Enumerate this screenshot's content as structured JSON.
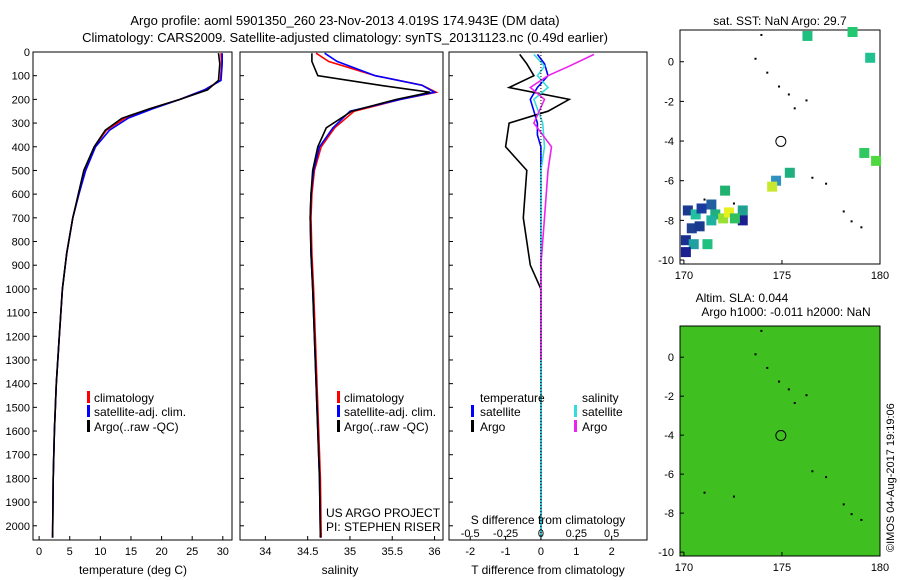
{
  "header": {
    "line1": "Argo profile: aoml 5901350_260 23-Nov-2013 4.019S 174.943E (DM data)",
    "line2": "Climatology: CARS2009. Satellite-adjusted climatology: synTS_20131123.nc (0.49d earlier)"
  },
  "colors": {
    "climatology": "#ff0000",
    "satellite": "#0000ff",
    "argo": "#000000",
    "salinity_satellite": "#33dddd",
    "salinity_argo": "#ee22ee"
  },
  "depth_ticks": [
    0,
    100,
    200,
    300,
    400,
    500,
    600,
    700,
    800,
    900,
    1000,
    1100,
    1200,
    1300,
    1400,
    1500,
    1600,
    1700,
    1800,
    1900,
    2000
  ],
  "chart_data": [
    {
      "type": "line",
      "xlabel": "temperature (deg C)",
      "ylabel": "",
      "xlim": [
        -1,
        31.5
      ],
      "ylim": [
        2060,
        0
      ],
      "x_ticks": [
        0,
        5,
        10,
        15,
        20,
        25,
        30
      ],
      "legend": [
        "climatology",
        "satellite-adj. clim.",
        "Argo(..raw -QC)"
      ],
      "series": [
        {
          "name": "climatology",
          "x": [
            29.7,
            29.8,
            29.6,
            27,
            23,
            18,
            14,
            11,
            9,
            7.5,
            6.5,
            5.5,
            4.5,
            3.8,
            3.3,
            2.8,
            2.5,
            2.3,
            2.2
          ],
          "y": [
            5,
            50,
            120,
            160,
            200,
            240,
            280,
            330,
            400,
            500,
            600,
            700,
            850,
            1000,
            1200,
            1400,
            1600,
            1800,
            2050
          ]
        },
        {
          "name": "satellite-adj. clim.",
          "x": [
            29.9,
            29.9,
            29.7,
            27,
            23,
            18.5,
            14.5,
            11.5,
            9.2,
            7.6,
            6.5,
            5.5,
            4.5,
            3.8,
            3.3,
            2.8,
            2.5,
            2.3,
            2.2
          ],
          "y": [
            5,
            50,
            120,
            160,
            200,
            240,
            280,
            330,
            400,
            500,
            600,
            700,
            850,
            1000,
            1200,
            1400,
            1600,
            1800,
            2050
          ]
        },
        {
          "name": "Argo(..raw -QC)",
          "x": [
            29.3,
            29.5,
            29.3,
            27.5,
            23,
            18,
            13.5,
            10.8,
            9,
            7.3,
            6.4,
            5.5,
            4.5,
            3.8,
            3.3,
            2.8,
            2.5,
            2.3,
            2.2
          ],
          "y": [
            5,
            50,
            120,
            160,
            200,
            240,
            280,
            330,
            400,
            500,
            600,
            700,
            850,
            1000,
            1200,
            1400,
            1600,
            1800,
            2050
          ]
        }
      ]
    },
    {
      "type": "line",
      "xlabel": "salinity",
      "ylabel": "",
      "xlim": [
        33.7,
        36.1
      ],
      "ylim": [
        2060,
        0
      ],
      "x_ticks": [
        34,
        34.5,
        35,
        35.5,
        36
      ],
      "legend": [
        "climatology",
        "satellite-adj. clim.",
        "Argo(..raw -QC)"
      ],
      "annotation": [
        "US ARGO PROJECT",
        "PI: STEPHEN RISER"
      ],
      "series": [
        {
          "name": "climatology",
          "x": [
            34.6,
            34.75,
            35.3,
            35.85,
            36.02,
            35.6,
            35.05,
            34.82,
            34.66,
            34.58,
            34.55,
            34.54,
            34.55,
            34.57,
            34.59,
            34.61,
            34.63,
            34.65,
            34.66
          ],
          "y": [
            5,
            40,
            100,
            140,
            170,
            200,
            250,
            320,
            400,
            500,
            600,
            700,
            850,
            1000,
            1200,
            1400,
            1600,
            1800,
            2050
          ]
        },
        {
          "name": "satellite-adj. clim.",
          "x": [
            34.7,
            34.85,
            35.3,
            35.85,
            36.0,
            35.6,
            35.0,
            34.8,
            34.64,
            34.57,
            34.54,
            34.53,
            34.54,
            34.56,
            34.58,
            34.6,
            34.62,
            34.64,
            34.65
          ],
          "y": [
            5,
            40,
            100,
            140,
            170,
            200,
            250,
            320,
            400,
            500,
            600,
            700,
            850,
            1000,
            1200,
            1400,
            1600,
            1800,
            2050
          ]
        },
        {
          "name": "Argo(..raw -QC)",
          "x": [
            34.55,
            34.55,
            34.62,
            35.35,
            35.95,
            35.55,
            35.02,
            34.72,
            34.62,
            34.56,
            34.54,
            34.53,
            34.54,
            34.56,
            34.58,
            34.6,
            34.62,
            34.64,
            34.65
          ],
          "y": [
            5,
            40,
            100,
            140,
            170,
            200,
            250,
            320,
            400,
            500,
            600,
            700,
            850,
            1000,
            1200,
            1400,
            1600,
            1800,
            2050
          ]
        }
      ]
    },
    {
      "type": "line",
      "xlabel": "T difference from climatology",
      "xlabel_top": "S difference from climatology",
      "xlim": [
        -2.6,
        3
      ],
      "ylim": [
        2060,
        0
      ],
      "x_ticks": [
        -2,
        -1,
        0,
        1,
        2
      ],
      "x_ticks_top_labels": [
        "-0.5",
        "-0.25",
        "0",
        "0.25",
        "0.5"
      ],
      "x_ticks_top_positions": [
        -2,
        -1,
        0,
        1,
        2
      ],
      "legend_temperature": {
        "title": "temperature",
        "items": [
          "satellite",
          "Argo"
        ]
      },
      "legend_salinity": {
        "title": "salinity",
        "items": [
          "satellite",
          "Argo"
        ]
      },
      "series": [
        {
          "name": "T satellite",
          "x": [
            -0.1,
            0.1,
            0.2,
            -0.1,
            -0.3,
            -0.2,
            -0.1,
            -0.1,
            0,
            0,
            0,
            0,
            0,
            0,
            0
          ],
          "y": [
            10,
            50,
            100,
            150,
            200,
            250,
            300,
            350,
            400,
            500,
            700,
            1000,
            1400,
            1800,
            2050
          ]
        },
        {
          "name": "T Argo",
          "x": [
            -0.6,
            -0.4,
            -0.2,
            -0.9,
            0.8,
            0.2,
            -0.9,
            -1,
            -0.4,
            -0.5,
            -0.4,
            -0.3,
            0,
            0,
            0
          ],
          "y": [
            10,
            50,
            100,
            150,
            200,
            250,
            300,
            400,
            500,
            700,
            800,
            900,
            1000,
            1400,
            2050
          ]
        },
        {
          "name": "S satellite",
          "x": [
            -0.2,
            0.1,
            -0.1,
            0.2,
            -0.2,
            0.05,
            0.1,
            0,
            0,
            0,
            0,
            0,
            0,
            0
          ],
          "y": [
            10,
            60,
            100,
            150,
            200,
            300,
            400,
            500,
            600,
            800,
            1000,
            1400,
            1800,
            2050
          ]
        },
        {
          "name": "S Argo",
          "x": [
            1.5,
            0.8,
            0.2,
            -0.3,
            0.1,
            -0.2,
            0.3,
            0.2,
            0.1,
            0,
            0,
            0
          ],
          "y": [
            10,
            60,
            100,
            150,
            200,
            300,
            400,
            500,
            700,
            900,
            1100,
            1300
          ]
        }
      ]
    },
    {
      "type": "heatmap",
      "title": "sat. SST: NaN Argo: 29.7",
      "xlim": [
        169.8,
        180
      ],
      "ylim": [
        -10.2,
        1.6
      ],
      "x_ticks": [
        170,
        175,
        180
      ],
      "y_ticks": [
        0,
        -2,
        -4,
        -6,
        -8,
        -10
      ],
      "marker": {
        "x": 174.943,
        "y": -4.019
      },
      "cells": [
        {
          "x": 176.3,
          "y": 1.3,
          "c": "#1ec080"
        },
        {
          "x": 178.6,
          "y": 1.5,
          "c": "#22c870"
        },
        {
          "x": 179.5,
          "y": 0.2,
          "c": "#20c090"
        },
        {
          "x": 179.2,
          "y": -4.6,
          "c": "#30c860"
        },
        {
          "x": 179.8,
          "y": -5.0,
          "c": "#50d840"
        },
        {
          "x": 175.4,
          "y": -5.6,
          "c": "#20b080"
        },
        {
          "x": 174.7,
          "y": -6.0,
          "c": "#3090c0"
        },
        {
          "x": 174.5,
          "y": -6.3,
          "c": "#c8e830"
        },
        {
          "x": 172.1,
          "y": -6.5,
          "c": "#20b070"
        },
        {
          "x": 173.0,
          "y": -7.5,
          "c": "#20a090"
        },
        {
          "x": 173.0,
          "y": -8.0,
          "c": "#1a2090"
        },
        {
          "x": 170.2,
          "y": -7.5,
          "c": "#1a3a90"
        },
        {
          "x": 170.6,
          "y": -7.7,
          "c": "#20c0a0"
        },
        {
          "x": 170.9,
          "y": -7.4,
          "c": "#1a3aa0"
        },
        {
          "x": 171.4,
          "y": -7.2,
          "c": "#2060a0"
        },
        {
          "x": 171.6,
          "y": -7.7,
          "c": "#20b080"
        },
        {
          "x": 172.0,
          "y": -7.9,
          "c": "#9ae030"
        },
        {
          "x": 172.3,
          "y": -7.6,
          "c": "#e8f020"
        },
        {
          "x": 170.4,
          "y": -8.4,
          "c": "#204090"
        },
        {
          "x": 170.8,
          "y": -8.3,
          "c": "#1a3a90"
        },
        {
          "x": 170.1,
          "y": -9.0,
          "c": "#1a3090"
        },
        {
          "x": 170.5,
          "y": -9.2,
          "c": "#20a0a0"
        },
        {
          "x": 170.1,
          "y": -9.6,
          "c": "#1a2090"
        },
        {
          "x": 171.2,
          "y": -9.2,
          "c": "#20c080"
        },
        {
          "x": 171.4,
          "y": -8.0,
          "c": "#20b0a0"
        },
        {
          "x": 172.6,
          "y": -7.9,
          "c": "#30c060"
        }
      ]
    },
    {
      "type": "heatmap",
      "title": "Altim. SLA: 0.044",
      "subtitle": "Argo h1000: -0.011 h2000: NaN",
      "xlim": [
        169.8,
        180
      ],
      "ylim": [
        -10.2,
        1.6
      ],
      "x_ticks": [
        170,
        175,
        180
      ],
      "y_ticks": [
        0,
        -2,
        -4,
        -6,
        -8,
        -10
      ],
      "marker": {
        "x": 174.943,
        "y": -4.019
      },
      "fill": "#40c020"
    }
  ],
  "watermark": "©IMOS 04-Aug-2017 19:19:06"
}
